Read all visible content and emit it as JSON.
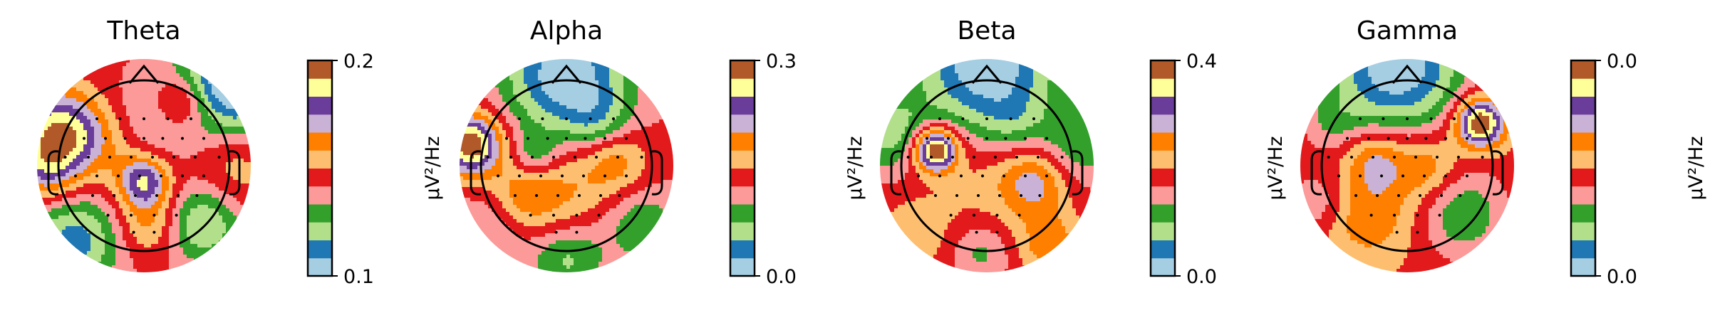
{
  "chart_data": [
    {
      "type": "heatmap",
      "title": "Theta",
      "colorbar": {
        "label": "µV²/Hz",
        "min_label": "0.1",
        "max_label": "0.2"
      },
      "palette": [
        "#a6cee3",
        "#1f78b4",
        "#b2df8a",
        "#33a02c",
        "#fb9a99",
        "#e31a1c",
        "#fdbf6f",
        "#ff7f00",
        "#cab2d6",
        "#6a3d9a",
        "#ffff99",
        "#b15928"
      ],
      "blobs": [
        {
          "u": -0.78,
          "v": 0.3,
          "r": 0.28,
          "a": 1.6
        },
        {
          "u": -0.92,
          "v": -0.05,
          "r": 0.2,
          "a": 0.7
        },
        {
          "u": 0.0,
          "v": -0.15,
          "r": 0.17,
          "a": 1.3
        },
        {
          "u": 0.05,
          "v": 0.4,
          "r": 0.3,
          "a": -0.4
        },
        {
          "u": 0.35,
          "v": 0.6,
          "r": 0.18,
          "a": 0.8
        },
        {
          "u": 0.85,
          "v": 0.8,
          "r": 0.35,
          "a": -1.6
        },
        {
          "u": -0.65,
          "v": -0.7,
          "r": 0.3,
          "a": -1.0
        },
        {
          "u": 0.55,
          "v": -0.55,
          "r": 0.25,
          "a": -0.9
        },
        {
          "u": 0.05,
          "v": -0.55,
          "r": 0.2,
          "a": 0.6
        },
        {
          "u": 0.85,
          "v": 0.0,
          "r": 0.28,
          "a": 0.4
        },
        {
          "u": -0.3,
          "v": 0.2,
          "r": 0.25,
          "a": 0.3
        }
      ]
    },
    {
      "type": "heatmap",
      "title": "Alpha",
      "colorbar": {
        "label": "µV²/Hz",
        "min_label": "0.0",
        "max_label": "0.3"
      },
      "palette": [
        "#a6cee3",
        "#1f78b4",
        "#b2df8a",
        "#33a02c",
        "#fb9a99",
        "#e31a1c",
        "#fdbf6f",
        "#ff7f00",
        "#cab2d6",
        "#6a3d9a",
        "#ffff99",
        "#b15928"
      ],
      "blobs": [
        {
          "u": -0.9,
          "v": 0.2,
          "r": 0.2,
          "a": 2.0
        },
        {
          "u": 0.0,
          "v": 0.85,
          "r": 0.4,
          "a": -1.5
        },
        {
          "u": -0.1,
          "v": -0.3,
          "r": 0.35,
          "a": 0.6
        },
        {
          "u": 0.45,
          "v": 0.05,
          "r": 0.22,
          "a": 0.7
        },
        {
          "u": -0.45,
          "v": -0.3,
          "r": 0.22,
          "a": 0.5
        },
        {
          "u": -0.3,
          "v": 0.1,
          "r": 0.15,
          "a": -0.6
        },
        {
          "u": 0.3,
          "v": 0.4,
          "r": 0.2,
          "a": -0.5
        },
        {
          "u": 0.0,
          "v": -0.85,
          "r": 0.25,
          "a": -0.8
        },
        {
          "u": 0.7,
          "v": -0.55,
          "r": 0.25,
          "a": -0.6
        },
        {
          "u": -0.7,
          "v": -0.55,
          "r": 0.25,
          "a": -0.5
        }
      ]
    },
    {
      "type": "heatmap",
      "title": "Beta",
      "colorbar": {
        "label": "µV²/Hz",
        "min_label": "0.0",
        "max_label": "0.4"
      },
      "palette": [
        "#a6cee3",
        "#1f78b4",
        "#b2df8a",
        "#33a02c",
        "#fb9a99",
        "#e31a1c",
        "#fdbf6f",
        "#ff7f00",
        "#cab2d6",
        "#6a3d9a",
        "#ffff99",
        "#b15928"
      ],
      "blobs": [
        {
          "u": -0.48,
          "v": 0.15,
          "r": 0.14,
          "a": 2.6
        },
        {
          "u": 0.0,
          "v": 0.95,
          "r": 0.45,
          "a": -1.8
        },
        {
          "u": -0.9,
          "v": 0.3,
          "r": 0.25,
          "a": -0.9
        },
        {
          "u": 0.0,
          "v": -0.2,
          "r": 0.4,
          "a": 0.4
        },
        {
          "u": 0.45,
          "v": -0.15,
          "r": 0.22,
          "a": 1.0
        },
        {
          "u": 0.6,
          "v": -0.75,
          "r": 0.22,
          "a": 0.8
        },
        {
          "u": -0.7,
          "v": -0.65,
          "r": 0.25,
          "a": 0.5
        },
        {
          "u": 0.25,
          "v": 0.4,
          "r": 0.2,
          "a": -0.4
        },
        {
          "u": 0.85,
          "v": 0.2,
          "r": 0.25,
          "a": -0.7
        },
        {
          "u": -0.05,
          "v": -0.8,
          "r": 0.2,
          "a": -0.6
        }
      ]
    },
    {
      "type": "heatmap",
      "title": "Gamma",
      "colorbar": {
        "label": "µV²/Hz",
        "min_label": "0.0",
        "max_label": "0.0"
      },
      "palette": [
        "#a6cee3",
        "#1f78b4",
        "#b2df8a",
        "#33a02c",
        "#fb9a99",
        "#e31a1c",
        "#fdbf6f",
        "#ff7f00",
        "#cab2d6",
        "#6a3d9a",
        "#ffff99",
        "#b15928"
      ],
      "blobs": [
        {
          "u": 0.68,
          "v": 0.4,
          "r": 0.16,
          "a": 2.1
        },
        {
          "u": -0.1,
          "v": 0.95,
          "r": 0.45,
          "a": -1.8
        },
        {
          "u": -0.3,
          "v": 0.05,
          "r": 0.2,
          "a": 0.8
        },
        {
          "u": 0.2,
          "v": 0.0,
          "r": 0.2,
          "a": 0.6
        },
        {
          "u": -0.4,
          "v": -0.5,
          "r": 0.25,
          "a": 0.5
        },
        {
          "u": 0.5,
          "v": -0.45,
          "r": 0.3,
          "a": -0.9
        },
        {
          "u": -0.85,
          "v": -0.35,
          "r": 0.2,
          "a": -0.5
        },
        {
          "u": 0.0,
          "v": -0.3,
          "r": 0.35,
          "a": 0.3
        },
        {
          "u": -0.7,
          "v": 0.4,
          "r": 0.2,
          "a": -0.4
        }
      ]
    }
  ]
}
